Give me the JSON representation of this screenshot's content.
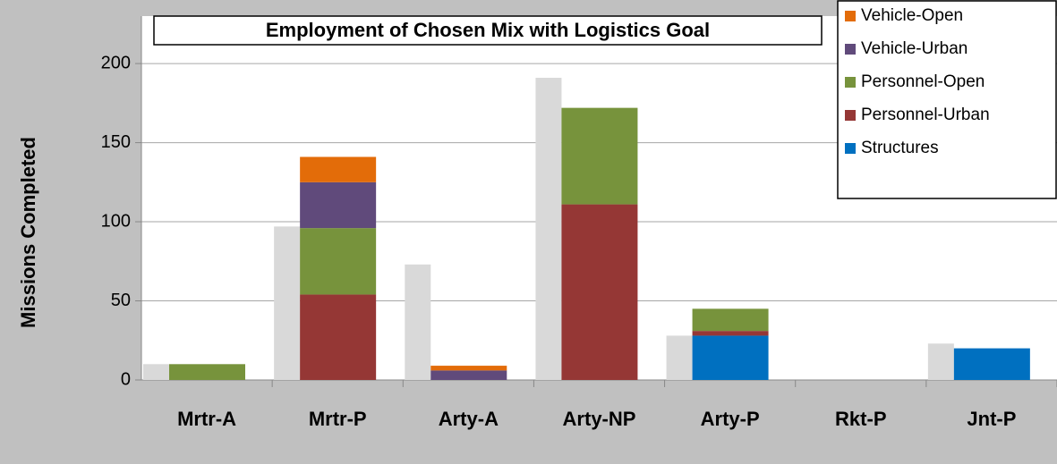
{
  "chart_data": {
    "type": "stacked_bar",
    "title": "Employment of Chosen Mix with Logistics Goal",
    "ylabel": "Missions Completed",
    "categories": [
      "Mrtr-A",
      "Mrtr-P",
      "Arty-A",
      "Arty-NP",
      "Arty-P",
      "Rkt-P",
      "Jnt-P"
    ],
    "reference": {
      "color": "#d9d9d9",
      "values": [
        10,
        97,
        73,
        191,
        28,
        0,
        23
      ]
    },
    "series": [
      {
        "name": "Structures",
        "color": "#0070c0",
        "values": [
          0,
          0,
          0,
          0,
          28,
          0,
          20
        ]
      },
      {
        "name": "Personnel-Urban",
        "color": "#953735",
        "values": [
          0,
          54,
          0,
          111,
          3,
          0,
          0
        ]
      },
      {
        "name": "Personnel-Open",
        "color": "#77933c",
        "values": [
          10,
          42,
          0,
          61,
          14,
          0,
          0
        ]
      },
      {
        "name": "Vehicle-Urban",
        "color": "#604a7b",
        "values": [
          0,
          29,
          6,
          0,
          0,
          0,
          0
        ]
      },
      {
        "name": "Vehicle-Open",
        "color": "#e36c09",
        "values": [
          0,
          16,
          3,
          0,
          0,
          0,
          0
        ]
      }
    ],
    "ylim": [
      0,
      230
    ],
    "yticks": [
      0,
      50,
      100,
      150,
      200
    ],
    "grid": true,
    "legend_position": "top-right"
  }
}
